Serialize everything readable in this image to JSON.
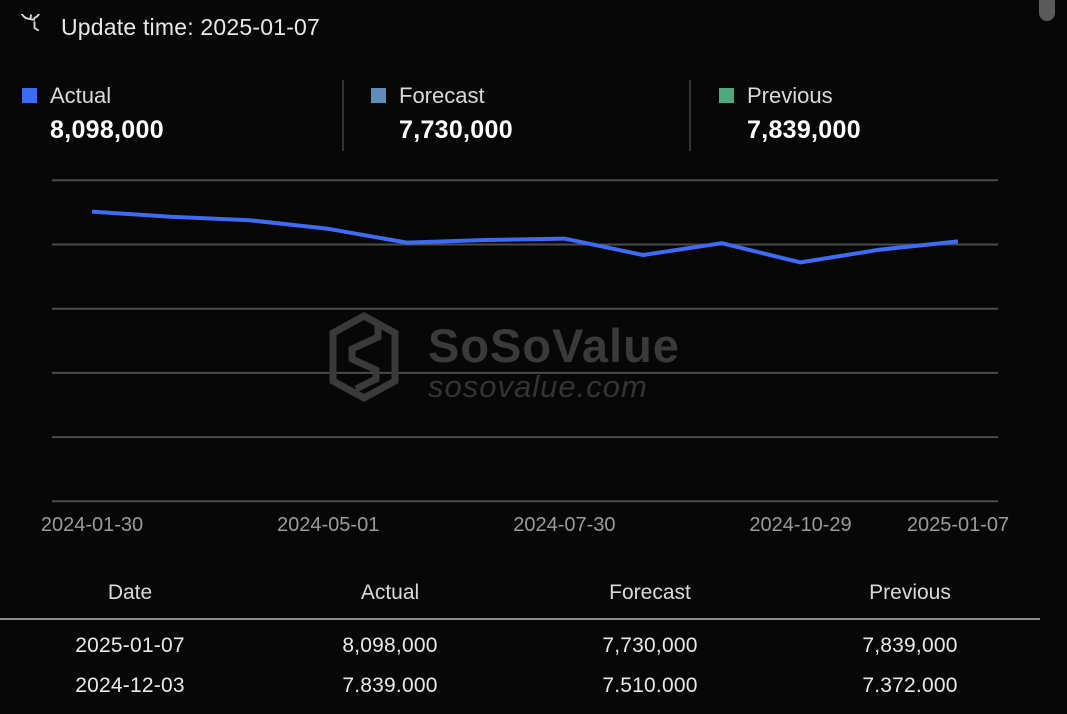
{
  "header": {
    "title": "Update time: 2025-01-07"
  },
  "colors": {
    "background": "#070707",
    "actual": "#3d6bf3",
    "forecast": "#5f8cb9",
    "previous": "#50a87e",
    "gridline": "#4b4b4b",
    "watermark": "#3a3a3a"
  },
  "legend": {
    "items": [
      {
        "label": "Actual",
        "value": "8,098,000",
        "color": "#3d6bf3"
      },
      {
        "label": "Forecast",
        "value": "7,730,000",
        "color": "#5f8cb9"
      },
      {
        "label": "Previous",
        "value": "7,839,000",
        "color": "#50a87e"
      }
    ]
  },
  "chart_data": {
    "type": "line",
    "title": "",
    "xlabel": "",
    "ylabel": "",
    "ylim": [
      0,
      10000000
    ],
    "grid": "horizontal, every 2,000,000",
    "legend_position": "top",
    "x_tick_labels": [
      "2024-01-30",
      "2024-05-01",
      "2024-07-30",
      "2024-10-29",
      "2025-01-07"
    ],
    "x_tick_point_indices": [
      0,
      3,
      6,
      9,
      11
    ],
    "series": [
      {
        "name": "Actual",
        "color": "#3d6bf3",
        "x": [
          "2024-01-30",
          "2024-03-06",
          "2024-04-02",
          "2024-05-01",
          "2024-06-04",
          "2024-07-02",
          "2024-07-30",
          "2024-09-04",
          "2024-10-01",
          "2024-10-29",
          "2024-12-03",
          "2025-01-07"
        ],
        "values": [
          9026000,
          8863000,
          8756000,
          8488000,
          8059000,
          8140000,
          8184000,
          7673000,
          8040000,
          7443000,
          7839000,
          8098000
        ]
      }
    ]
  },
  "watermark": {
    "brand": "SoSoValue",
    "domain": "sosovalue.com"
  },
  "table": {
    "columns": [
      "Date",
      "Actual",
      "Forecast",
      "Previous"
    ],
    "rows": [
      [
        "2025-01-07",
        "8,098,000",
        "7,730,000",
        "7,839,000"
      ],
      [
        "2024-12-03",
        "7.839.000",
        "7.510.000",
        "7.372.000"
      ]
    ]
  }
}
